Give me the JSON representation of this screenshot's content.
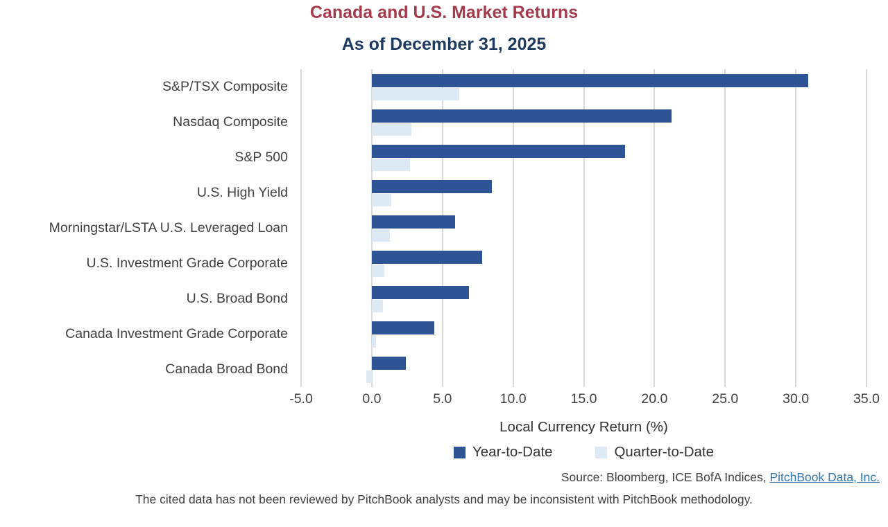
{
  "header": {
    "title": "Canada and U.S. Market Returns",
    "subtitle": "As of December 31, 2025"
  },
  "chart_data": {
    "type": "bar",
    "orientation": "horizontal",
    "title": "Canada and U.S. Market Returns",
    "subtitle": "As of December 31, 2025",
    "categories": [
      "S&P/TSX Composite",
      "Nasdaq Composite",
      "S&P 500",
      "U.S. High Yield",
      "Morningstar/LSTA U.S. Leveraged Loan",
      "U.S. Investment Grade Corporate",
      "U.S. Broad Bond",
      "Canada Investment Grade Corporate",
      "Canada Broad Bond"
    ],
    "series": [
      {
        "name": "Year-to-Date",
        "color": "#2F5496",
        "values": [
          30.9,
          21.2,
          17.9,
          8.5,
          5.9,
          7.8,
          6.9,
          4.4,
          2.4
        ]
      },
      {
        "name": "Quarter-to-Date",
        "color": "#DEE9F6",
        "values": [
          6.2,
          2.8,
          2.7,
          1.4,
          1.3,
          0.9,
          0.8,
          0.3,
          -0.4
        ]
      }
    ],
    "xlabel": "Local Currency Return (%)",
    "xlim": [
      -5,
      35
    ],
    "xticks": [
      -5,
      0,
      5,
      10,
      15,
      20,
      25,
      30,
      35
    ],
    "xtick_labels": [
      "-5.0",
      "0.0",
      "5.0",
      "10.0",
      "15.0",
      "20.0",
      "25.0",
      "30.0",
      "35.0"
    ],
    "grid": "vertical",
    "gridline_color": "#D9D9D9",
    "legend_position": "bottom"
  },
  "footer": {
    "source_prefix": "Source: Bloomberg, ICE BofA Indices, ",
    "source_link": "PitchBook Data, Inc.",
    "disclaimer": "The cited data has not been reviewed by PitchBook analysts and may be inconsistent with PitchBook methodology."
  },
  "colors": {
    "title_red": "#A63A4D",
    "subtitle_navy": "#1F3A60",
    "ytd_bar": "#2F5496",
    "qtd_bar": "#DEE9F6",
    "gridline": "#D9D9D9",
    "text_gray": "#404040",
    "link_blue": "#2E75B6"
  }
}
